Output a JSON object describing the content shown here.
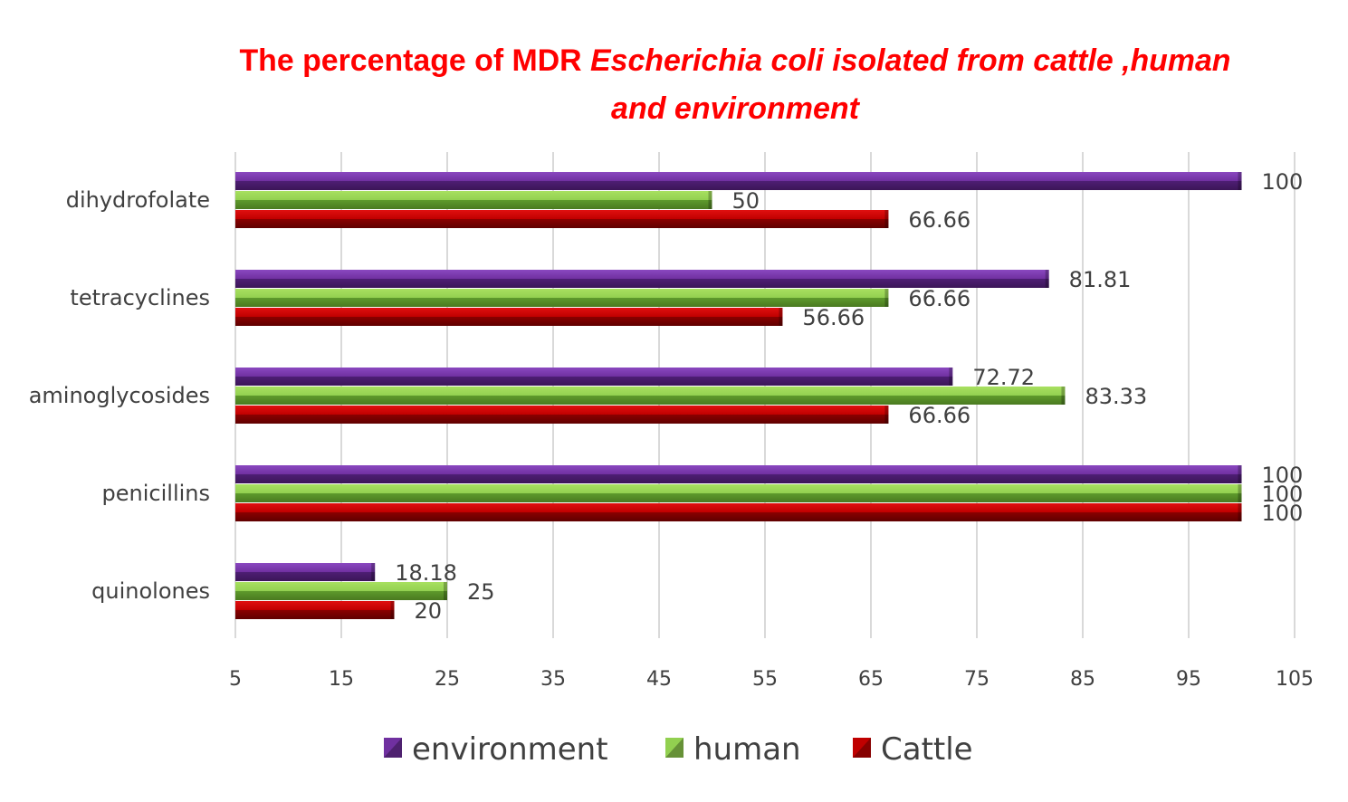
{
  "chart_data": {
    "type": "bar",
    "orientation": "horizontal",
    "title_plain": "The percentage of  MDR ",
    "title_italic_1": "Escherichia coli isolated from cattle ,human",
    "title_italic_2": "and  environment",
    "categories": [
      "quinolones",
      "penicillins",
      "aminoglycosides",
      "tetracyclines",
      "dihydrofolate"
    ],
    "series": [
      {
        "name": "Cattle",
        "color": "#c00000",
        "values": [
          20,
          100,
          66.66,
          56.66,
          66.66
        ],
        "labels": [
          "20",
          "100",
          "66.66",
          "56.66",
          "66.66"
        ]
      },
      {
        "name": "human",
        "color": "#92d050",
        "values": [
          25,
          100,
          83.33,
          66.66,
          50
        ],
        "labels": [
          "25",
          "100",
          "83.33",
          "66.66",
          "50"
        ]
      },
      {
        "name": "environment",
        "color": "#7030a0",
        "values": [
          18.18,
          100,
          72.72,
          81.81,
          100
        ],
        "labels": [
          "18.18",
          "100",
          "72.72",
          "81.81",
          "100"
        ]
      }
    ],
    "xlim": [
      5,
      105
    ],
    "xticks": [
      "5",
      "15",
      "25",
      "35",
      "45",
      "55",
      "65",
      "75",
      "85",
      "95",
      "105"
    ],
    "legend_order": [
      "environment",
      "human",
      "Cattle"
    ],
    "legend_position": "bottom",
    "grid": true
  }
}
